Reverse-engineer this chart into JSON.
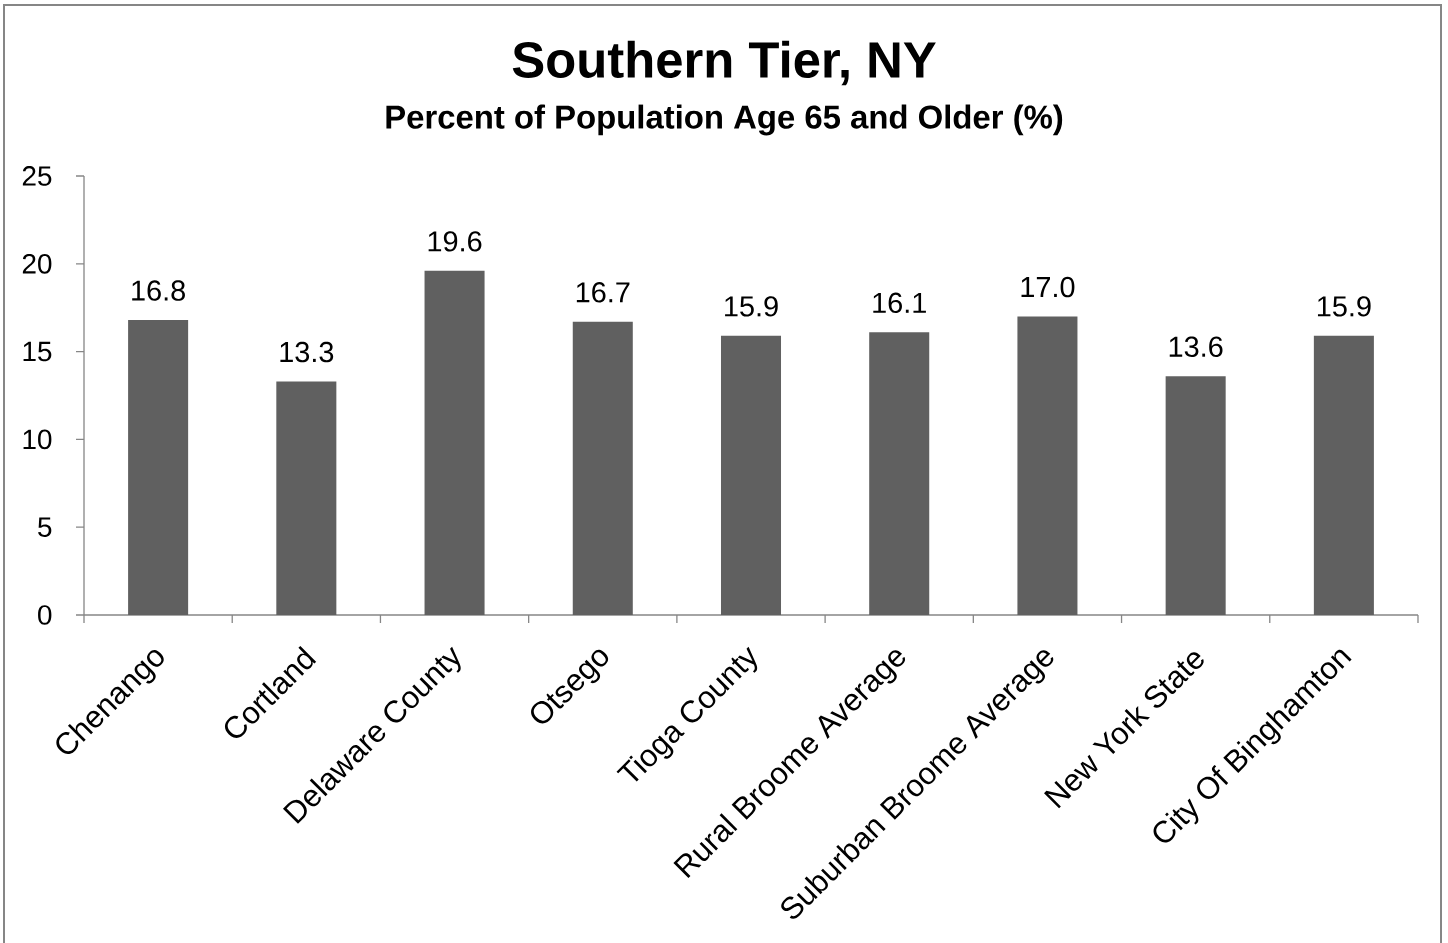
{
  "chart_data": {
    "type": "bar",
    "title": "Southern Tier, NY",
    "subtitle": "Percent of Population Age 65 and Older (%)",
    "categories": [
      "Chenango",
      "Cortland",
      "Delaware County",
      "Otsego",
      "Tioga County",
      "Rural Broome Average",
      "Suburban Broome Average",
      "New York State",
      "City Of Binghamton"
    ],
    "values": [
      16.8,
      13.3,
      19.6,
      16.7,
      15.9,
      16.1,
      17.0,
      13.6,
      15.9
    ],
    "value_labels": [
      "16.8",
      "13.3",
      "19.6",
      "16.7",
      "15.9",
      "16.1",
      "17.0",
      "13.6",
      "15.9"
    ],
    "color": "#606060",
    "ylim": [
      0,
      25
    ],
    "yticks": [
      0,
      5,
      10,
      15,
      20,
      25
    ]
  }
}
